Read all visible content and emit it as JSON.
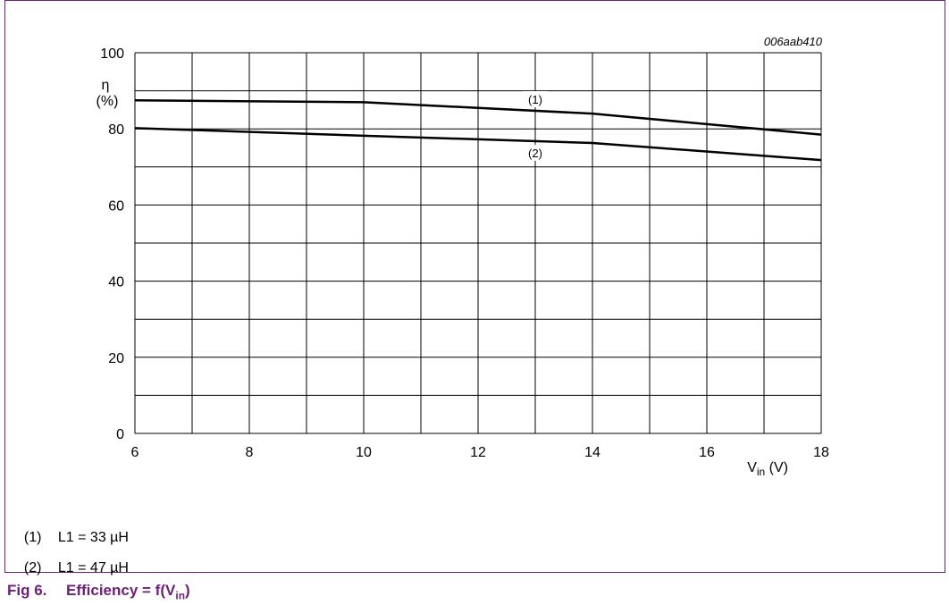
{
  "figure_id": "006aab410",
  "caption": {
    "number": "Fig 6.",
    "title_prefix": "Efficiency = f(V",
    "title_sub": "in",
    "title_suffix": ")"
  },
  "legend": [
    {
      "marker": "(1)",
      "text": "L1 = 33 µH"
    },
    {
      "marker": "(2)",
      "text": "L1 = 47 µH"
    }
  ],
  "chart_data": {
    "type": "line",
    "title": "",
    "ylabel_symbol": "η",
    "ylabel_unit": "(%)",
    "xlabel_main": "V",
    "xlabel_sub": "in",
    "xlabel_unit": " (V)",
    "xlim": [
      6,
      18
    ],
    "ylim": [
      0,
      100
    ],
    "x_ticks": [
      6,
      8,
      10,
      12,
      14,
      16,
      18
    ],
    "y_ticks": [
      0,
      20,
      40,
      60,
      80,
      100
    ],
    "x_grid_step": 1,
    "y_grid_step": 10,
    "grid": true,
    "series": [
      {
        "name": "(1)",
        "x": [
          6,
          10,
          14,
          18
        ],
        "y": [
          87.5,
          87,
          84,
          78.5
        ],
        "label_at_x": 13
      },
      {
        "name": "(2)",
        "x": [
          6,
          10,
          14,
          18
        ],
        "y": [
          80.2,
          78.2,
          76.3,
          71.8
        ],
        "label_at_x": 13
      }
    ]
  }
}
